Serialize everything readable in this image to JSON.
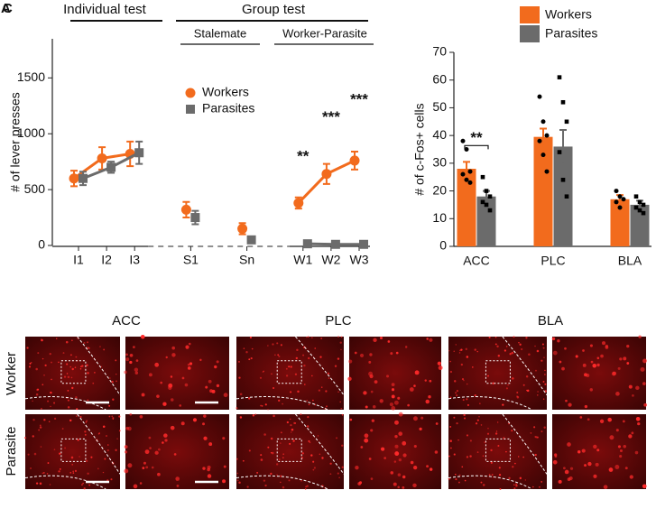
{
  "panel_labels": [
    "A",
    "C"
  ],
  "chart_data": [
    {
      "type": "line",
      "ylabel": "# of lever presses",
      "groups": [
        "Individual test",
        "Group test"
      ],
      "subgroups": [
        "Stalemate",
        "Worker-Parasite"
      ],
      "categories": [
        "I1",
        "I2",
        "I3",
        null,
        "S1",
        null,
        "Sn",
        null,
        "W1",
        "W2",
        "W3"
      ],
      "series": [
        {
          "name": "Workers",
          "color": "#f26b1d",
          "marker": "circle",
          "values": [
            600,
            780,
            820,
            null,
            320,
            null,
            150,
            null,
            380,
            640,
            760
          ],
          "errors": [
            70,
            100,
            110,
            null,
            70,
            null,
            50,
            null,
            50,
            90,
            80
          ]
        },
        {
          "name": "Parasites",
          "color": "#6b6b6b",
          "marker": "square",
          "values": [
            600,
            700,
            830,
            null,
            250,
            null,
            50,
            null,
            15,
            10,
            10
          ],
          "errors": [
            60,
            50,
            100,
            null,
            60,
            null,
            30,
            null,
            5,
            5,
            5
          ]
        }
      ],
      "significance": [
        null,
        null,
        null,
        null,
        null,
        null,
        null,
        null,
        "**",
        "***",
        "***"
      ],
      "ylim": [
        0,
        1850
      ],
      "yticks": [
        0,
        500,
        1000,
        1500
      ]
    },
    {
      "type": "bar",
      "ylabel": "# of c-Fos+ cells",
      "categories": [
        "ACC",
        "PLC",
        "BLA"
      ],
      "series": [
        {
          "name": "Workers",
          "color": "#f26b1d",
          "values": [
            28,
            39.5,
            17
          ],
          "errors": [
            2.5,
            3,
            1.5
          ],
          "points": [
            [
              38,
              35,
              27,
              26,
              24,
              23
            ],
            [
              54,
              45,
              40,
              38,
              33,
              27
            ],
            [
              20,
              18,
              17,
              16,
              14
            ]
          ]
        },
        {
          "name": "Parasites",
          "color": "#6b6b6b",
          "values": [
            18,
            36,
            15
          ],
          "errors": [
            2,
            6,
            1.5
          ],
          "points": [
            [
              25,
              20,
              18,
              16,
              15,
              13
            ],
            [
              61,
              52,
              45,
              34,
              24,
              18
            ],
            [
              18,
              16,
              15,
              14,
              13,
              12
            ]
          ]
        }
      ],
      "significance": [
        "**",
        null,
        null
      ],
      "ylim": [
        0,
        70
      ],
      "yticks": [
        0,
        10,
        20,
        30,
        40,
        50,
        60,
        70
      ]
    }
  ],
  "micrographs": {
    "columns": [
      "ACC",
      "PLC",
      "BLA"
    ],
    "rows": [
      "Worker",
      "Parasite"
    ]
  }
}
